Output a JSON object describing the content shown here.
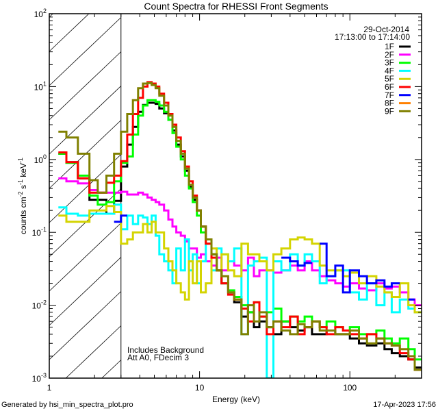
{
  "chart_data": {
    "type": "line",
    "title": "Count Spectra for RHESSI Front Segments",
    "xlabel": "Energy (keV)",
    "ylabel": {
      "base": "counts cm",
      "e1": "-2",
      "mid": " s",
      "e2": "-1",
      "mid2": " keV",
      "e3": "-1"
    },
    "xscale": "log",
    "yscale": "log",
    "xlim": [
      1,
      300
    ],
    "ylim": [
      0.001,
      100
    ],
    "xtick_values": [
      1,
      10,
      100
    ],
    "xtick_labels": [
      "1",
      "10",
      "100"
    ],
    "ytick_values": [
      0.001,
      0.01,
      0.1,
      1,
      10,
      100
    ],
    "ytick_labels": [
      {
        "base": "10",
        "exp": "-3"
      },
      {
        "base": "10",
        "exp": "-2"
      },
      {
        "base": "10",
        "exp": "-1"
      },
      {
        "base": "10",
        "exp": "0"
      },
      {
        "base": "10",
        "exp": "1"
      },
      {
        "base": "10",
        "exp": "2"
      }
    ],
    "excluded_region_keV": [
      1,
      3
    ],
    "date": "29-Oct-2014",
    "time_range": "17:13:00 to 17:14:00",
    "annotations": [
      "Includes Background",
      "Att A0, FDecim 3"
    ],
    "legend_position": "top-right",
    "energy_edges": [
      1.15,
      1.3,
      1.55,
      1.85,
      2.1,
      2.4,
      2.7,
      3.0,
      3.3,
      3.6,
      3.9,
      4.2,
      4.5,
      4.8,
      5.1,
      5.4,
      5.8,
      6.2,
      6.6,
      7.0,
      7.5,
      8.0,
      8.5,
      9.0,
      9.6,
      10.2,
      11,
      12,
      13,
      14,
      15.5,
      17,
      19,
      21,
      23,
      25,
      28,
      31,
      35,
      40,
      45,
      50,
      56,
      63,
      70,
      80,
      90,
      100,
      115,
      130,
      150,
      170,
      190,
      215,
      245,
      270,
      300
    ],
    "series": [
      {
        "name": "1F",
        "color": "#000000",
        "values": [
          1.2,
          0.92,
          0.55,
          0.28,
          0.28,
          0.18,
          0.27,
          0.8,
          1.6,
          2.8,
          4.5,
          5.6,
          6,
          6,
          5.8,
          5,
          4.3,
          3.5,
          2.5,
          1.6,
          1.1,
          0.7,
          0.42,
          0.28,
          0.2,
          0.12,
          0.08,
          0.05,
          0.03,
          0.02,
          0.015,
          0.011,
          0.007,
          0.008,
          0.005,
          0.006,
          0.005,
          0.004,
          0.006,
          0.005,
          0.0045,
          0.005,
          0.004,
          0.004,
          0.0045,
          0.004,
          0.004,
          0.0035,
          0.003,
          0.0028,
          0.003,
          0.0025,
          0.0022,
          0.002,
          0.0018,
          0.0014
        ]
      },
      {
        "name": "2F",
        "color": "#ff00ff",
        "values": [
          0.55,
          0.5,
          0.47,
          0.38,
          0.35,
          0.35,
          0.35,
          0.36,
          0.33,
          0.33,
          0.35,
          0.33,
          0.3,
          0.28,
          0.26,
          0.24,
          0.2,
          0.15,
          0.12,
          0.1,
          0.09,
          0.075,
          0.06,
          0.06,
          0.045,
          0.05,
          0.04,
          0.035,
          0.045,
          0.03,
          0.04,
          0.035,
          0.03,
          0.045,
          0.025,
          0.03,
          0.03,
          0.028,
          0.03,
          0.035,
          0.03,
          0.04,
          0.03,
          0.025,
          0.022,
          0.02,
          0.018,
          0.02,
          0.017,
          0.016,
          0.02,
          0.017,
          0.018,
          0.015,
          0.012,
          0.01
        ]
      },
      {
        "name": "3F",
        "color": "#00ff00",
        "values": [
          1.2,
          0.9,
          0.6,
          0.32,
          0.24,
          0.26,
          0.5,
          0.9,
          1.1,
          2.2,
          4,
          5.5,
          6.5,
          6.5,
          6.2,
          5.5,
          4.5,
          3.5,
          2.3,
          1.5,
          1,
          0.6,
          0.4,
          0.26,
          0.17,
          0.1,
          0.07,
          0.05,
          0.03,
          0.02,
          0.016,
          0.013,
          0.01,
          0.008,
          0.011,
          0.007,
          0.008,
          0.009,
          0.006,
          0.007,
          0.006,
          0.007,
          0.006,
          0.005,
          0.006,
          0.005,
          0.0045,
          0.005,
          0.004,
          0.004,
          0.0045,
          0.0035,
          0.003,
          0.0035,
          0.0025,
          0.0018
        ]
      },
      {
        "name": "4F",
        "color": "#00ffff",
        "values": [
          0.22,
          0.18,
          0.17,
          0.18,
          0.18,
          0.18,
          0.24,
          0.11,
          0.17,
          0.13,
          0.17,
          0.16,
          0.13,
          0.17,
          0.09,
          0.05,
          0.04,
          0.03,
          0.02,
          0.06,
          0.03,
          0.08,
          0.03,
          0.05,
          0.02,
          0.04,
          0.07,
          0.03,
          0.06,
          0.05,
          0.04,
          0.06,
          0.004,
          0.035,
          0.04,
          0.045,
          0.0009,
          0.04,
          0.03,
          0.05,
          0.035,
          0.05,
          0.04,
          0.02,
          0.025,
          0.03,
          0.03,
          0.015,
          0.012,
          0.02,
          0.01,
          0.015,
          0.008,
          0.012,
          0.009,
          0.008
        ]
      },
      {
        "name": "5F",
        "color": "#d4d400",
        "values": [
          0.17,
          0.14,
          0.14,
          0.2,
          0.2,
          0.23,
          0.19,
          0.07,
          0.08,
          0.1,
          0.1,
          0.13,
          0.1,
          0.14,
          0.1,
          0.1,
          0.06,
          0.04,
          0.03,
          0.02,
          0.015,
          0.012,
          0.04,
          0.02,
          0.04,
          0.015,
          0.02,
          0.06,
          0.03,
          0.05,
          0.03,
          0.025,
          0.07,
          0.05,
          0.05,
          0.04,
          0.03,
          0.05,
          0.06,
          0.08,
          0.085,
          0.08,
          0.07,
          0.035,
          0.03,
          0.03,
          0.025,
          0.028,
          0.02,
          0.025,
          0.018,
          0.015,
          0.013,
          0.02,
          0.01,
          0.008
        ]
      },
      {
        "name": "6F",
        "color": "#ff0000",
        "values": [
          1.25,
          0.92,
          0.55,
          0.35,
          0.35,
          0.48,
          0.6,
          0.95,
          2.2,
          4.2,
          7,
          10,
          11.5,
          11,
          10,
          8,
          6,
          4.2,
          3,
          2,
          1.3,
          0.8,
          0.5,
          0.32,
          0.2,
          0.12,
          0.07,
          0.045,
          0.03,
          0.02,
          0.014,
          0.012,
          0.009,
          0.006,
          0.011,
          0.007,
          0.004,
          0.006,
          0.005,
          0.007,
          0.004,
          0.005,
          0.006,
          0.005,
          0.004,
          0.005,
          0.0045,
          0.004,
          0.0035,
          0.004,
          0.0035,
          0.003,
          0.0028,
          0.0022,
          0.0018,
          0.0013
        ]
      },
      {
        "name": "7F",
        "color": "#0000ff",
        "values": [
          null,
          null,
          null,
          null,
          null,
          null,
          0.14,
          0.17,
          null,
          null,
          null,
          null,
          null,
          null,
          null,
          null,
          null,
          null,
          null,
          null,
          null,
          null,
          null,
          null,
          null,
          null,
          null,
          null,
          null,
          null,
          null,
          null,
          null,
          null,
          null,
          null,
          null,
          null,
          0.045,
          0.04,
          0.035,
          0.038,
          null,
          0.07,
          0.025,
          0.035,
          0.015,
          0.03,
          0.025,
          0.02,
          0.022,
          0.018,
          0.02,
          null,
          0.012,
          null
        ]
      },
      {
        "name": "8F",
        "color": "#ff8000",
        "values": []
      },
      {
        "name": "9F",
        "color": "#808000",
        "values": [
          2.4,
          2,
          1.2,
          0.52,
          0.35,
          0.6,
          1.2,
          2.4,
          4.2,
          6.5,
          9.5,
          11,
          11.2,
          10.5,
          9.5,
          7.5,
          5.5,
          4,
          2.8,
          1.8,
          1.2,
          0.75,
          0.45,
          0.3,
          0.2,
          0.12,
          0.08,
          0.05,
          0.03,
          0.025,
          0.015,
          0.012,
          0.004,
          0.01,
          0.006,
          0.008,
          0.005,
          0.006,
          0.0045,
          0.004,
          0.0055,
          0.005,
          0.006,
          0.0045,
          0.0045,
          0.004,
          0.004,
          0.0045,
          0.0035,
          0.003,
          0.0035,
          0.003,
          0.0028,
          0.0025,
          0.002,
          0.0013
        ]
      }
    ]
  },
  "footer": {
    "generated_by": "Generated by hsi_min_spectra_plot.pro",
    "timestamp": "17-Apr-2023 17:56"
  }
}
